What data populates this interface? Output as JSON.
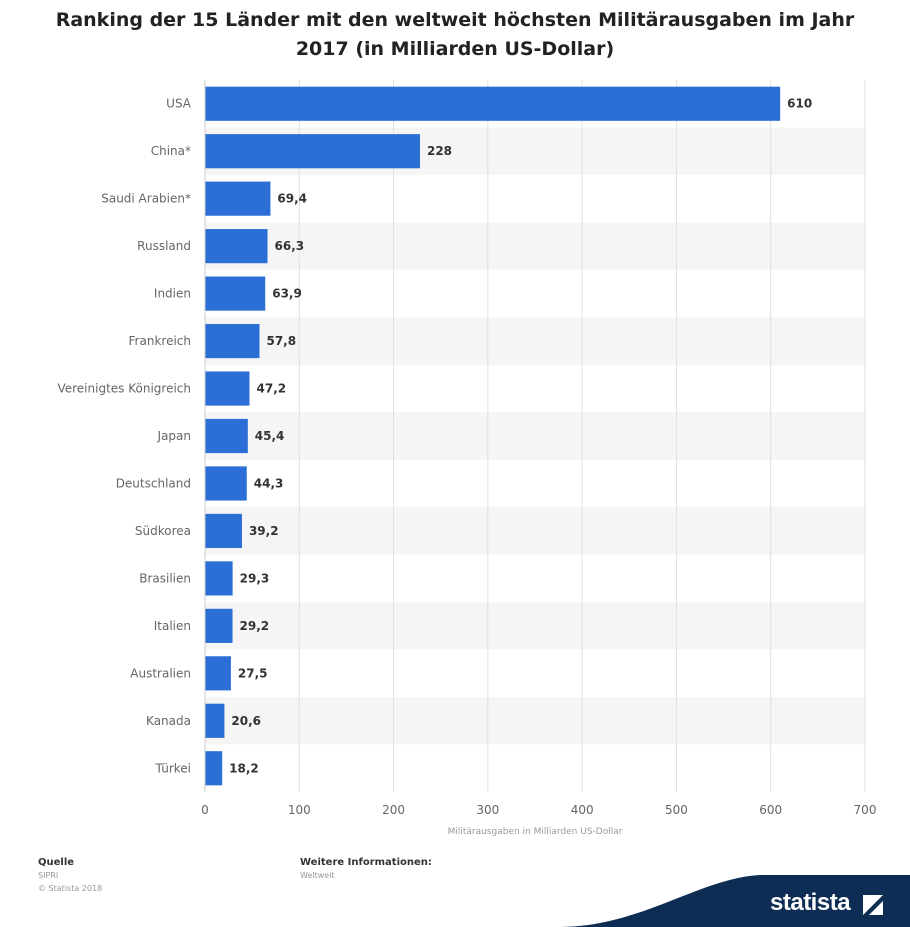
{
  "chart_data": {
    "type": "bar",
    "orientation": "horizontal",
    "title": "Ranking der 15 Länder mit den weltweit höchsten Militärausgaben im Jahr 2017 (in Milliarden US-Dollar)",
    "xlabel": "Militärausgaben in Milliarden US-Dollar",
    "ylabel": "",
    "xlim": [
      0,
      700
    ],
    "xticks": [
      0,
      100,
      200,
      300,
      400,
      500,
      600,
      700
    ],
    "grid": true,
    "bar_color": "#2b6fd6",
    "categories": [
      "USA",
      "China*",
      "Saudi Arabien*",
      "Russland",
      "Indien",
      "Frankreich",
      "Vereinigtes Königreich",
      "Japan",
      "Deutschland",
      "Südkorea",
      "Brasilien",
      "Italien",
      "Australien",
      "Kanada",
      "Türkei"
    ],
    "values": [
      610,
      228,
      69.4,
      66.3,
      63.9,
      57.8,
      47.2,
      45.4,
      44.3,
      39.2,
      29.3,
      29.2,
      27.5,
      20.6,
      18.2
    ],
    "value_labels": [
      "610",
      "228",
      "69,4",
      "66,3",
      "63,9",
      "57,8",
      "47,2",
      "45,4",
      "44,3",
      "39,2",
      "29,3",
      "29,2",
      "27,5",
      "20,6",
      "18,2"
    ]
  },
  "footer": {
    "source_heading": "Quelle",
    "source_name": "SIPRI",
    "copyright": "© Statista 2018",
    "info_heading": "Weitere Informationen:",
    "info_text": "Weltweit"
  },
  "brand": {
    "name": "statista",
    "color": "#0d2d54",
    "accent": "#2b6fd6"
  }
}
